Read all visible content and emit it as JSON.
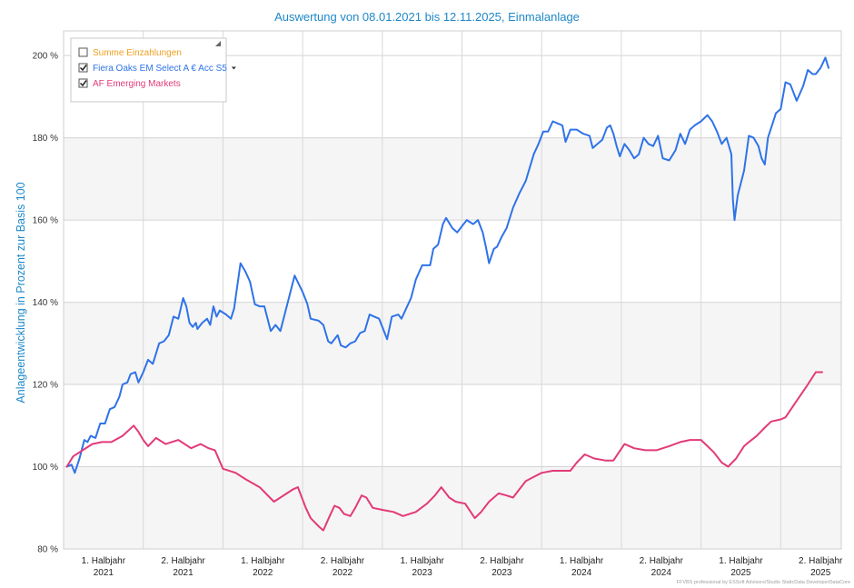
{
  "chart_data": {
    "type": "line",
    "title": "Auswertung von 08.01.2021 bis 12.11.2025, Einmalanlage",
    "ylabel": "Anlageentwicklung  in Prozent zur Basis 100",
    "xlabel": "",
    "ylim": [
      80,
      206
    ],
    "yticks": [
      80,
      100,
      120,
      140,
      160,
      180,
      200
    ],
    "ytick_suffix": " %",
    "xlim": [
      2021.0,
      2025.88
    ],
    "x_tick_labels": [
      {
        "line1": "1. Halbjahr",
        "line2": "2021",
        "x": 2021.25
      },
      {
        "line1": "2. Halbjahr",
        "line2": "2021",
        "x": 2021.75
      },
      {
        "line1": "1. Halbjahr",
        "line2": "2022",
        "x": 2022.25
      },
      {
        "line1": "2. Halbjahr",
        "line2": "2022",
        "x": 2022.75
      },
      {
        "line1": "1. Halbjahr",
        "line2": "2023",
        "x": 2023.25
      },
      {
        "line1": "2. Halbjahr",
        "line2": "2023",
        "x": 2023.75
      },
      {
        "line1": "1. Halbjahr",
        "line2": "2024",
        "x": 2024.25
      },
      {
        "line1": "2. Halbjahr",
        "line2": "2024",
        "x": 2024.75
      },
      {
        "line1": "1. Halbjahr",
        "line2": "2025",
        "x": 2025.25
      },
      {
        "line1": "2. Halbjahr",
        "line2": "2025",
        "x": 2025.75
      }
    ],
    "x_gridlines": [
      2021.5,
      2022.0,
      2022.5,
      2023.0,
      2023.5,
      2024.0,
      2024.5,
      2025.0,
      2025.5
    ],
    "grid": true,
    "legend_position": "top-left",
    "series": [
      {
        "name": "Summe Einzahlungen",
        "checked": false,
        "color": "#f0a020",
        "points": []
      },
      {
        "name": "Fiera Oaks EM Select A € Acc S5",
        "checked": true,
        "has_dropdown": true,
        "color": "#2f73e8",
        "points": [
          [
            2021.02,
            100
          ],
          [
            2021.05,
            100.5
          ],
          [
            2021.07,
            98.5
          ],
          [
            2021.1,
            102
          ],
          [
            2021.13,
            106.5
          ],
          [
            2021.15,
            106
          ],
          [
            2021.17,
            107.5
          ],
          [
            2021.2,
            107
          ],
          [
            2021.23,
            110.5
          ],
          [
            2021.26,
            110.5
          ],
          [
            2021.29,
            114
          ],
          [
            2021.32,
            114.5
          ],
          [
            2021.35,
            117
          ],
          [
            2021.37,
            120
          ],
          [
            2021.4,
            120.5
          ],
          [
            2021.42,
            122.5
          ],
          [
            2021.45,
            123
          ],
          [
            2021.47,
            120.5
          ],
          [
            2021.5,
            123
          ],
          [
            2021.53,
            126
          ],
          [
            2021.56,
            125
          ],
          [
            2021.6,
            130
          ],
          [
            2021.63,
            130.5
          ],
          [
            2021.66,
            132
          ],
          [
            2021.69,
            136.5
          ],
          [
            2021.72,
            136
          ],
          [
            2021.75,
            141
          ],
          [
            2021.77,
            139
          ],
          [
            2021.79,
            135
          ],
          [
            2021.81,
            134
          ],
          [
            2021.83,
            135
          ],
          [
            2021.84,
            133.5
          ],
          [
            2021.87,
            135
          ],
          [
            2021.9,
            136
          ],
          [
            2021.92,
            134.5
          ],
          [
            2021.94,
            139
          ],
          [
            2021.96,
            136.5
          ],
          [
            2021.98,
            138
          ],
          [
            2022.02,
            137
          ],
          [
            2022.05,
            136
          ],
          [
            2022.07,
            138.5
          ],
          [
            2022.09,
            144
          ],
          [
            2022.11,
            149.5
          ],
          [
            2022.14,
            147.5
          ],
          [
            2022.17,
            145
          ],
          [
            2022.2,
            139.5
          ],
          [
            2022.23,
            139
          ],
          [
            2022.26,
            139
          ],
          [
            2022.3,
            133
          ],
          [
            2022.33,
            134.5
          ],
          [
            2022.36,
            133
          ],
          [
            2022.4,
            139
          ],
          [
            2022.45,
            146.5
          ],
          [
            2022.5,
            142.5
          ],
          [
            2022.53,
            139.5
          ],
          [
            2022.55,
            136
          ],
          [
            2022.6,
            135.5
          ],
          [
            2022.63,
            134.5
          ],
          [
            2022.66,
            130.5
          ],
          [
            2022.68,
            130
          ],
          [
            2022.72,
            132
          ],
          [
            2022.74,
            129.5
          ],
          [
            2022.77,
            129
          ],
          [
            2022.8,
            130
          ],
          [
            2022.83,
            130.5
          ],
          [
            2022.86,
            132.5
          ],
          [
            2022.89,
            133
          ],
          [
            2022.92,
            137
          ],
          [
            2022.95,
            136.5
          ],
          [
            2022.98,
            136
          ],
          [
            2023.01,
            133
          ],
          [
            2023.03,
            131
          ],
          [
            2023.06,
            136.5
          ],
          [
            2023.1,
            137
          ],
          [
            2023.12,
            136
          ],
          [
            2023.15,
            138.5
          ],
          [
            2023.18,
            141
          ],
          [
            2023.21,
            145.5
          ],
          [
            2023.25,
            149
          ],
          [
            2023.28,
            149
          ],
          [
            2023.3,
            149
          ],
          [
            2023.32,
            153
          ],
          [
            2023.35,
            154
          ],
          [
            2023.38,
            159
          ],
          [
            2023.4,
            160.5
          ],
          [
            2023.44,
            158
          ],
          [
            2023.47,
            157
          ],
          [
            2023.5,
            158.5
          ],
          [
            2023.53,
            160
          ],
          [
            2023.57,
            159
          ],
          [
            2023.6,
            160
          ],
          [
            2023.63,
            157
          ],
          [
            2023.65,
            153.5
          ],
          [
            2023.67,
            149.5
          ],
          [
            2023.7,
            153
          ],
          [
            2023.72,
            153.5
          ],
          [
            2023.75,
            156
          ],
          [
            2023.78,
            158
          ],
          [
            2023.82,
            163
          ],
          [
            2023.86,
            166.5
          ],
          [
            2023.9,
            169.5
          ],
          [
            2023.95,
            176
          ],
          [
            2023.98,
            178.5
          ],
          [
            2024.01,
            181.5
          ],
          [
            2024.04,
            181.5
          ],
          [
            2024.07,
            184
          ],
          [
            2024.1,
            183.5
          ],
          [
            2024.13,
            183
          ],
          [
            2024.15,
            179
          ],
          [
            2024.18,
            182
          ],
          [
            2024.22,
            182
          ],
          [
            2024.26,
            181
          ],
          [
            2024.3,
            180.5
          ],
          [
            2024.32,
            177.5
          ],
          [
            2024.35,
            178.5
          ],
          [
            2024.38,
            179.5
          ],
          [
            2024.41,
            182.5
          ],
          [
            2024.43,
            183
          ],
          [
            2024.45,
            181
          ],
          [
            2024.47,
            178
          ],
          [
            2024.49,
            175.5
          ],
          [
            2024.52,
            178.5
          ],
          [
            2024.55,
            177
          ],
          [
            2024.58,
            175
          ],
          [
            2024.61,
            176
          ],
          [
            2024.64,
            180
          ],
          [
            2024.67,
            178.5
          ],
          [
            2024.7,
            178
          ],
          [
            2024.73,
            180.5
          ],
          [
            2024.76,
            175
          ],
          [
            2024.8,
            174.5
          ],
          [
            2024.84,
            177
          ],
          [
            2024.87,
            181
          ],
          [
            2024.9,
            178.5
          ],
          [
            2024.93,
            182
          ],
          [
            2024.96,
            183
          ],
          [
            2025.0,
            184
          ],
          [
            2025.04,
            185.5
          ],
          [
            2025.07,
            184
          ],
          [
            2025.1,
            181.5
          ],
          [
            2025.13,
            178.5
          ],
          [
            2025.16,
            180
          ],
          [
            2025.19,
            176
          ],
          [
            2025.2,
            165
          ],
          [
            2025.21,
            160
          ],
          [
            2025.23,
            166
          ],
          [
            2025.27,
            172
          ],
          [
            2025.3,
            180.5
          ],
          [
            2025.33,
            180
          ],
          [
            2025.36,
            178
          ],
          [
            2025.38,
            175
          ],
          [
            2025.4,
            173.5
          ],
          [
            2025.42,
            180
          ],
          [
            2025.47,
            186
          ],
          [
            2025.5,
            187
          ],
          [
            2025.53,
            193.5
          ],
          [
            2025.56,
            193
          ],
          [
            2025.6,
            189
          ],
          [
            2025.64,
            192.5
          ],
          [
            2025.67,
            196.5
          ],
          [
            2025.7,
            195.5
          ],
          [
            2025.72,
            195.5
          ],
          [
            2025.75,
            197
          ],
          [
            2025.78,
            199.5
          ],
          [
            2025.8,
            197
          ]
        ]
      },
      {
        "name": "AF Emerging Markets",
        "checked": true,
        "color": "#e23a78",
        "points": [
          [
            2021.02,
            100
          ],
          [
            2021.06,
            102.5
          ],
          [
            2021.12,
            104
          ],
          [
            2021.18,
            105.5
          ],
          [
            2021.24,
            106
          ],
          [
            2021.3,
            106
          ],
          [
            2021.37,
            107.5
          ],
          [
            2021.44,
            110
          ],
          [
            2021.47,
            108.5
          ],
          [
            2021.5,
            106.5
          ],
          [
            2021.53,
            105
          ],
          [
            2021.58,
            107
          ],
          [
            2021.64,
            105.5
          ],
          [
            2021.72,
            106.5
          ],
          [
            2021.8,
            104.5
          ],
          [
            2021.86,
            105.5
          ],
          [
            2021.91,
            104.5
          ],
          [
            2021.95,
            104
          ],
          [
            2022.0,
            99.5
          ],
          [
            2022.08,
            98.5
          ],
          [
            2022.14,
            97
          ],
          [
            2022.23,
            95
          ],
          [
            2022.32,
            91.5
          ],
          [
            2022.36,
            92.5
          ],
          [
            2022.44,
            94.5
          ],
          [
            2022.47,
            95
          ],
          [
            2022.52,
            90
          ],
          [
            2022.55,
            87.5
          ],
          [
            2022.6,
            85.5
          ],
          [
            2022.63,
            84.5
          ],
          [
            2022.67,
            88
          ],
          [
            2022.7,
            90.5
          ],
          [
            2022.73,
            90
          ],
          [
            2022.76,
            88.5
          ],
          [
            2022.8,
            88
          ],
          [
            2022.83,
            90
          ],
          [
            2022.87,
            93
          ],
          [
            2022.9,
            92.5
          ],
          [
            2022.94,
            90
          ],
          [
            2023.0,
            89.5
          ],
          [
            2023.07,
            89
          ],
          [
            2023.13,
            88
          ],
          [
            2023.21,
            89
          ],
          [
            2023.28,
            91
          ],
          [
            2023.33,
            93
          ],
          [
            2023.37,
            95
          ],
          [
            2023.42,
            92.5
          ],
          [
            2023.46,
            91.5
          ],
          [
            2023.52,
            91
          ],
          [
            2023.58,
            87.5
          ],
          [
            2023.62,
            89
          ],
          [
            2023.67,
            91.5
          ],
          [
            2023.73,
            93.5
          ],
          [
            2023.78,
            93
          ],
          [
            2023.82,
            92.5
          ],
          [
            2023.86,
            94.5
          ],
          [
            2023.9,
            96.5
          ],
          [
            2023.95,
            97.5
          ],
          [
            2024.0,
            98.5
          ],
          [
            2024.07,
            99
          ],
          [
            2024.12,
            99
          ],
          [
            2024.18,
            99
          ],
          [
            2024.22,
            101
          ],
          [
            2024.27,
            103
          ],
          [
            2024.33,
            102
          ],
          [
            2024.4,
            101.5
          ],
          [
            2024.45,
            101.5
          ],
          [
            2024.52,
            105.5
          ],
          [
            2024.58,
            104.5
          ],
          [
            2024.65,
            104
          ],
          [
            2024.72,
            104
          ],
          [
            2024.8,
            105
          ],
          [
            2024.87,
            106
          ],
          [
            2024.93,
            106.5
          ],
          [
            2025.0,
            106.5
          ],
          [
            2025.04,
            105
          ],
          [
            2025.08,
            103.5
          ],
          [
            2025.13,
            101
          ],
          [
            2025.17,
            100
          ],
          [
            2025.22,
            102
          ],
          [
            2025.27,
            105
          ],
          [
            2025.3,
            106
          ],
          [
            2025.35,
            107.5
          ],
          [
            2025.4,
            109.5
          ],
          [
            2025.44,
            111
          ],
          [
            2025.5,
            111.5
          ],
          [
            2025.53,
            112
          ],
          [
            2025.6,
            116
          ],
          [
            2025.67,
            120
          ],
          [
            2025.72,
            123
          ],
          [
            2025.76,
            123
          ]
        ]
      }
    ]
  },
  "footer_text": "FFVBS professional by ESSoft Advisors/Studio StaticData DeveloperDataCore"
}
